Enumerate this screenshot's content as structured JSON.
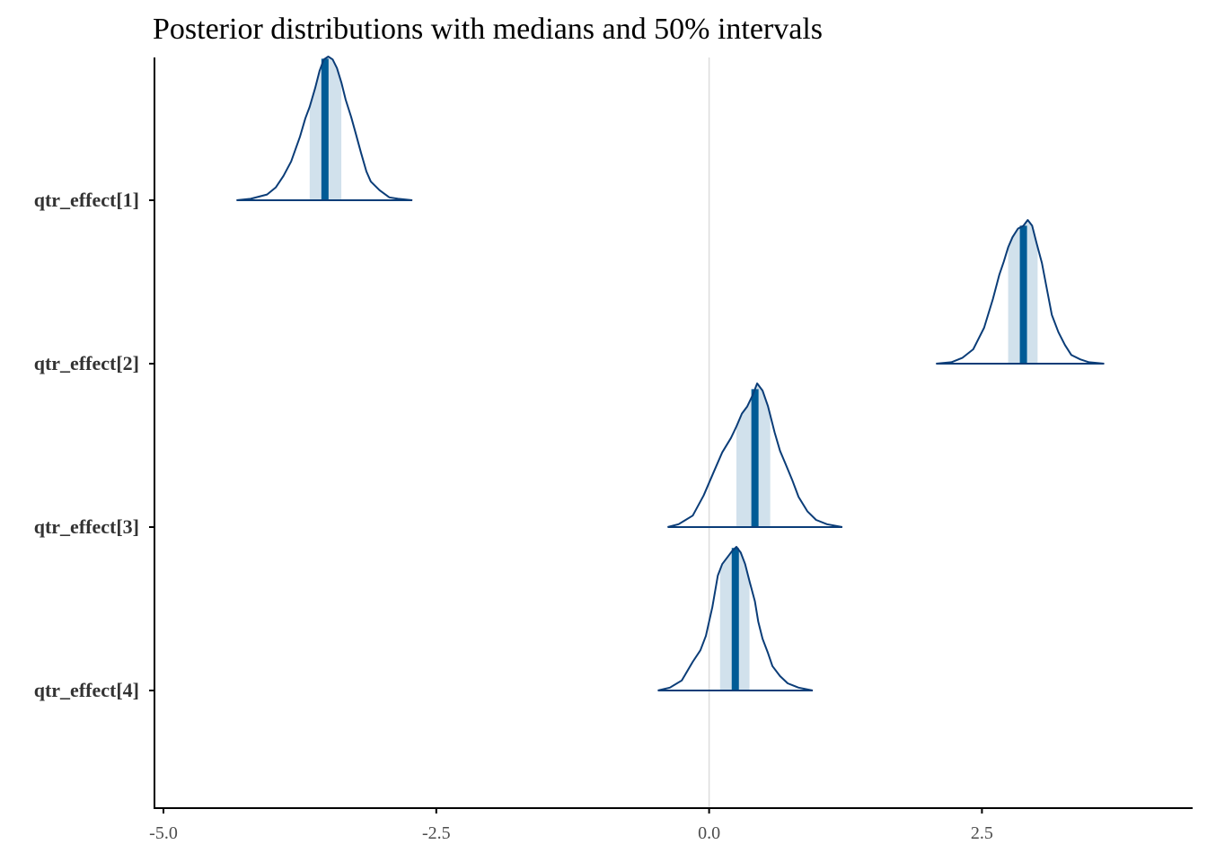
{
  "chart_data": {
    "type": "area",
    "title": "Posterior distributions with medians and 50% intervals",
    "xlabel": "",
    "ylabel": "",
    "xlim": [
      -5.0,
      4.3
    ],
    "xticks": [
      -5.0,
      -2.5,
      0.0,
      2.5
    ],
    "xtick_labels": [
      "-5.0",
      "-2.5",
      "0.0",
      "2.5"
    ],
    "reference_line_x": 0.0,
    "grid": false,
    "legend": "none",
    "colors": {
      "outline": "#0b3d78",
      "interval_fill": "#d1e1ec",
      "median": "#005b96",
      "reference": "#dddddd",
      "axis": "#000000"
    },
    "series": [
      {
        "name": "qtr_effect[1]",
        "median": -3.52,
        "interval_50": [
          -3.66,
          -3.37
        ],
        "range": [
          -4.33,
          -2.72
        ],
        "mode": -3.49,
        "density": [
          [
            -4.33,
            0.0
          ],
          [
            -4.2,
            0.01
          ],
          [
            -4.05,
            0.04
          ],
          [
            -3.97,
            0.09
          ],
          [
            -3.9,
            0.17
          ],
          [
            -3.83,
            0.27
          ],
          [
            -3.75,
            0.44
          ],
          [
            -3.7,
            0.57
          ],
          [
            -3.66,
            0.65
          ],
          [
            -3.61,
            0.78
          ],
          [
            -3.57,
            0.9
          ],
          [
            -3.53,
            0.98
          ],
          [
            -3.49,
            1.0
          ],
          [
            -3.45,
            0.98
          ],
          [
            -3.41,
            0.92
          ],
          [
            -3.37,
            0.82
          ],
          [
            -3.33,
            0.7
          ],
          [
            -3.28,
            0.58
          ],
          [
            -3.24,
            0.47
          ],
          [
            -3.19,
            0.33
          ],
          [
            -3.14,
            0.2
          ],
          [
            -3.1,
            0.13
          ],
          [
            -3.02,
            0.07
          ],
          [
            -2.93,
            0.02
          ],
          [
            -2.85,
            0.01
          ],
          [
            -2.72,
            0.0
          ]
        ]
      },
      {
        "name": "qtr_effect[2]",
        "median": 2.88,
        "interval_50": [
          2.74,
          3.01
        ],
        "range": [
          2.08,
          3.62
        ],
        "mode": 2.92,
        "density": [
          [
            2.08,
            0.0
          ],
          [
            2.22,
            0.01
          ],
          [
            2.32,
            0.04
          ],
          [
            2.42,
            0.1
          ],
          [
            2.52,
            0.25
          ],
          [
            2.6,
            0.45
          ],
          [
            2.66,
            0.62
          ],
          [
            2.7,
            0.71
          ],
          [
            2.74,
            0.81
          ],
          [
            2.78,
            0.88
          ],
          [
            2.83,
            0.94
          ],
          [
            2.88,
            0.96
          ],
          [
            2.92,
            1.0
          ],
          [
            2.96,
            0.96
          ],
          [
            3.0,
            0.84
          ],
          [
            3.05,
            0.7
          ],
          [
            3.1,
            0.5
          ],
          [
            3.14,
            0.34
          ],
          [
            3.2,
            0.22
          ],
          [
            3.26,
            0.13
          ],
          [
            3.32,
            0.06
          ],
          [
            3.4,
            0.03
          ],
          [
            3.48,
            0.01
          ],
          [
            3.62,
            0.0
          ]
        ]
      },
      {
        "name": "qtr_effect[3]",
        "median": 0.42,
        "interval_50": [
          0.25,
          0.56
        ],
        "range": [
          -0.38,
          1.22
        ],
        "mode": 0.44,
        "density": [
          [
            -0.38,
            0.0
          ],
          [
            -0.28,
            0.02
          ],
          [
            -0.15,
            0.08
          ],
          [
            -0.05,
            0.22
          ],
          [
            0.04,
            0.38
          ],
          [
            0.12,
            0.52
          ],
          [
            0.2,
            0.62
          ],
          [
            0.25,
            0.7
          ],
          [
            0.3,
            0.79
          ],
          [
            0.35,
            0.84
          ],
          [
            0.4,
            0.92
          ],
          [
            0.44,
            1.0
          ],
          [
            0.49,
            0.95
          ],
          [
            0.54,
            0.84
          ],
          [
            0.6,
            0.66
          ],
          [
            0.65,
            0.53
          ],
          [
            0.7,
            0.44
          ],
          [
            0.76,
            0.33
          ],
          [
            0.82,
            0.21
          ],
          [
            0.9,
            0.11
          ],
          [
            0.98,
            0.05
          ],
          [
            1.08,
            0.02
          ],
          [
            1.22,
            0.0
          ]
        ]
      },
      {
        "name": "qtr_effect[4]",
        "median": 0.24,
        "interval_50": [
          0.1,
          0.37
        ],
        "range": [
          -0.47,
          0.95
        ],
        "mode": 0.25,
        "density": [
          [
            -0.47,
            0.0
          ],
          [
            -0.36,
            0.02
          ],
          [
            -0.25,
            0.07
          ],
          [
            -0.15,
            0.2
          ],
          [
            -0.08,
            0.28
          ],
          [
            -0.03,
            0.38
          ],
          [
            0.03,
            0.58
          ],
          [
            0.08,
            0.8
          ],
          [
            0.12,
            0.88
          ],
          [
            0.17,
            0.93
          ],
          [
            0.21,
            0.97
          ],
          [
            0.25,
            1.0
          ],
          [
            0.29,
            0.96
          ],
          [
            0.33,
            0.88
          ],
          [
            0.37,
            0.76
          ],
          [
            0.42,
            0.62
          ],
          [
            0.45,
            0.48
          ],
          [
            0.49,
            0.36
          ],
          [
            0.54,
            0.26
          ],
          [
            0.58,
            0.17
          ],
          [
            0.65,
            0.1
          ],
          [
            0.72,
            0.05
          ],
          [
            0.82,
            0.02
          ],
          [
            0.95,
            0.0
          ]
        ]
      }
    ]
  }
}
